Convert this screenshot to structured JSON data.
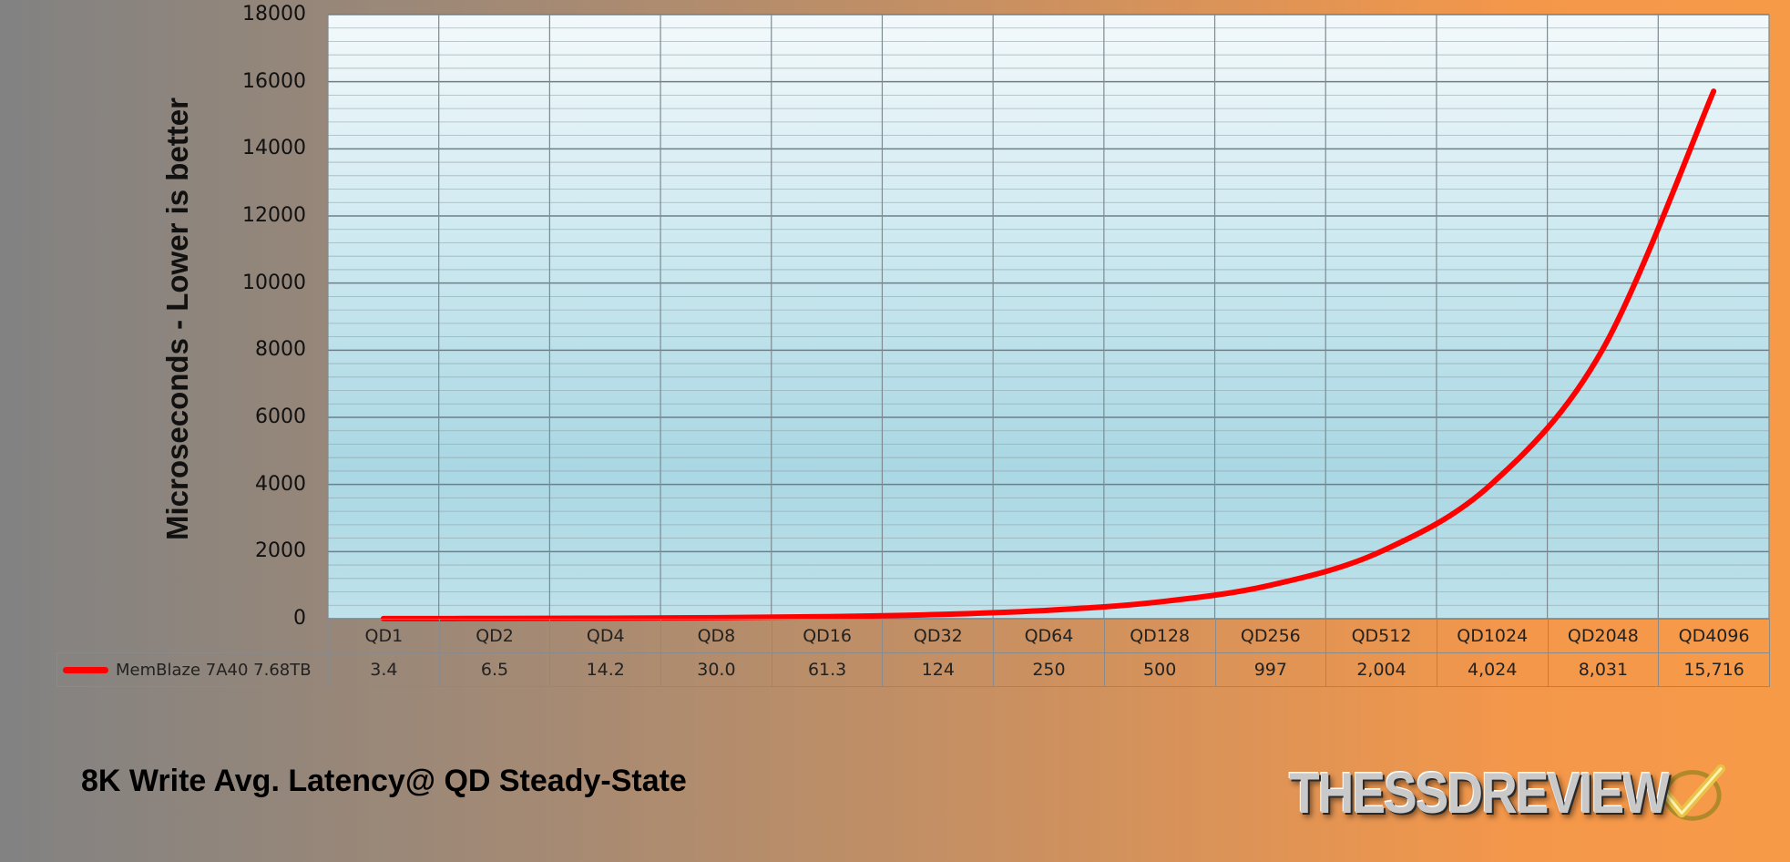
{
  "chart_data": {
    "type": "line",
    "title": "8K Write Avg. Latency@ QD Steady-State",
    "ylabel": "Microseconds - Lower is better",
    "ylim": [
      0,
      18000
    ],
    "y_ticks": [
      "0",
      "2000",
      "4000",
      "6000",
      "8000",
      "10000",
      "12000",
      "14000",
      "16000",
      "18000"
    ],
    "y_minor_step": 400,
    "grid": true,
    "categories": [
      "QD1",
      "QD2",
      "QD4",
      "QD8",
      "QD16",
      "QD32",
      "QD64",
      "QD128",
      "QD256",
      "QD512",
      "QD1024",
      "QD2048",
      "QD4096"
    ],
    "series": [
      {
        "name": "MemBlaze 7A40 7.68TB",
        "color": "#ff0000",
        "values": [
          3.4,
          6.5,
          14.2,
          30.0,
          61.3,
          124,
          250,
          500,
          997,
          2004,
          4024,
          8031,
          15716
        ],
        "value_labels": [
          "3.4",
          "6.5",
          "14.2",
          "30.0",
          "61.3",
          "124",
          "250",
          "500",
          "997",
          "2,004",
          "4,024",
          "8,031",
          "15,716"
        ]
      }
    ],
    "legend": "data-table"
  },
  "logo": {
    "text": "THESSDREVIEW",
    "icon": "checkmark-icon"
  }
}
